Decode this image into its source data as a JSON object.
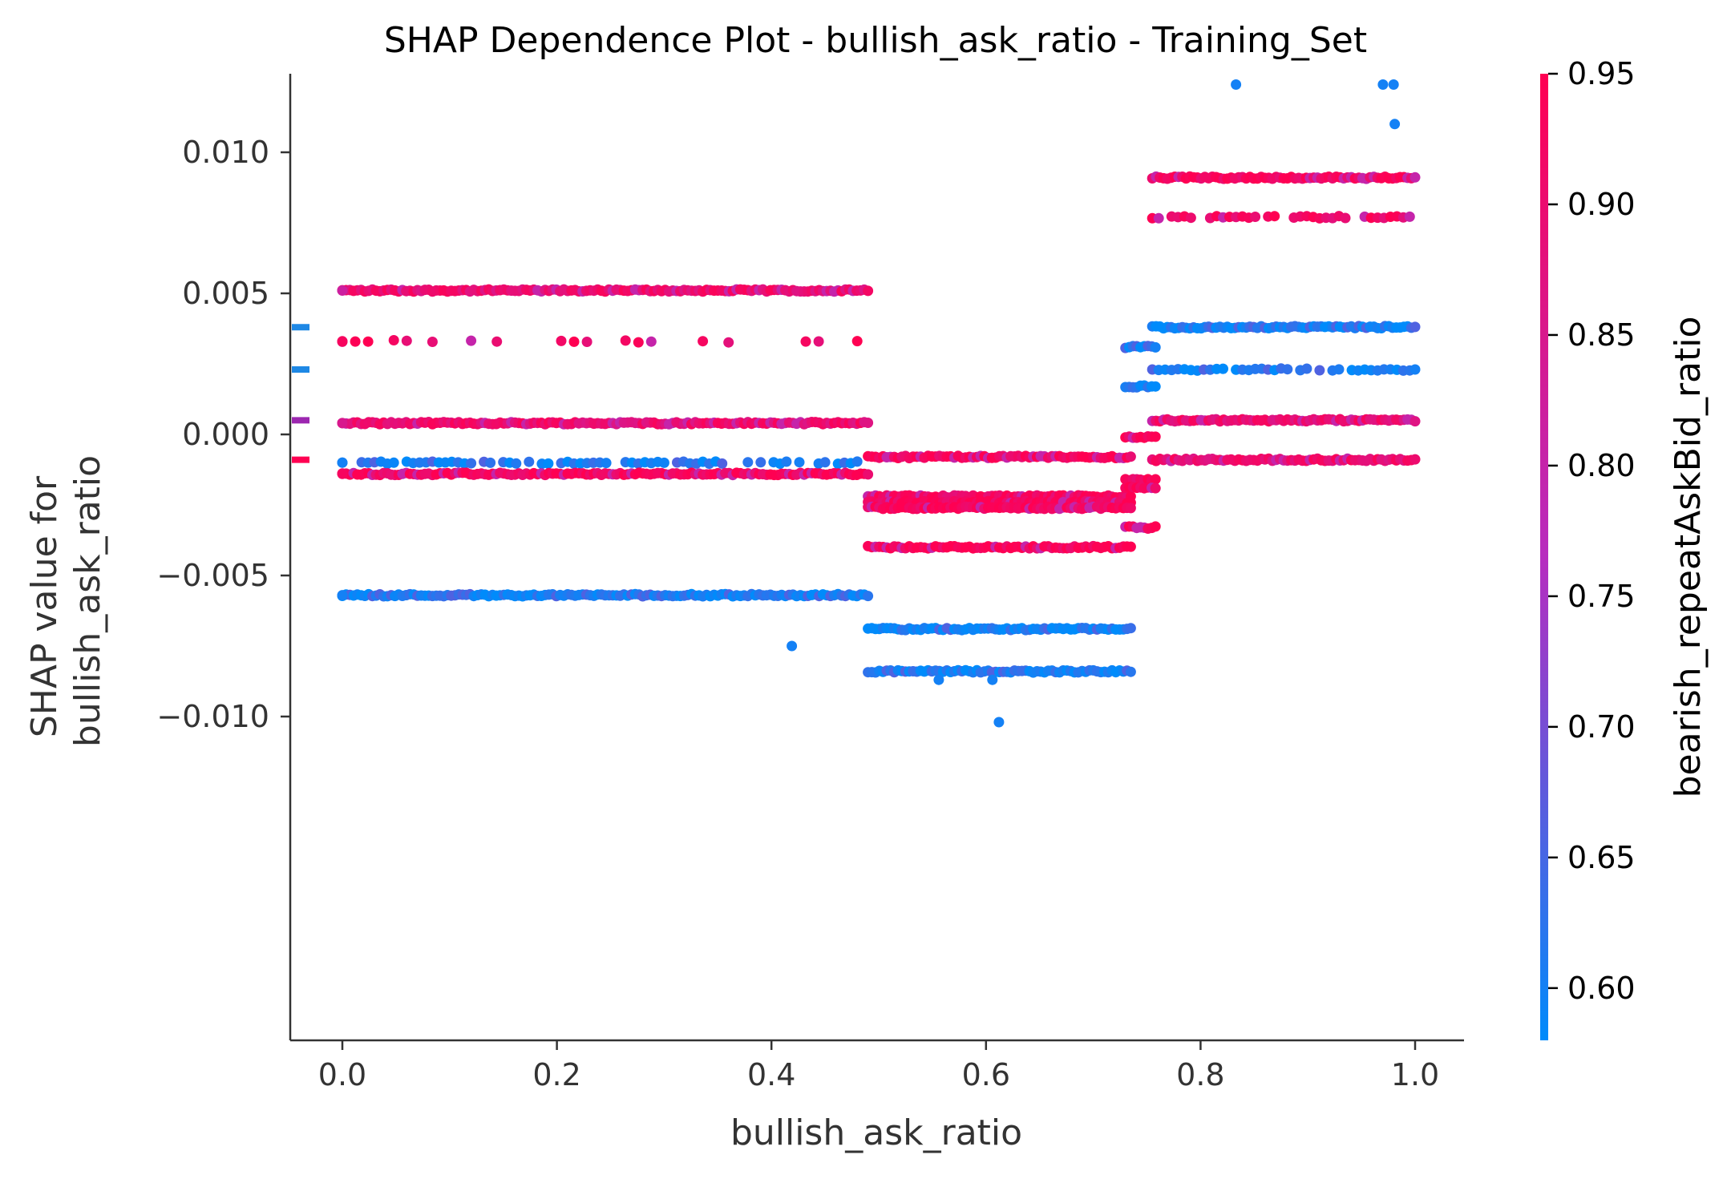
{
  "chart_data": {
    "type": "scatter",
    "title": "SHAP Dependence Plot - bullish_ask_ratio - Training_Set",
    "xlabel": "bullish_ask_ratio",
    "ylabel": [
      "SHAP value for",
      "bullish_ask_ratio"
    ],
    "xlim": [
      -0.05,
      1.05
    ],
    "ylim": [
      -0.0113,
      0.0135
    ],
    "x_ticks": [
      0.0,
      0.2,
      0.4,
      0.6,
      0.8,
      1.0
    ],
    "x_tick_labels": [
      "0.0",
      "0.2",
      "0.4",
      "0.6",
      "0.8",
      "1.0"
    ],
    "y_ticks": [
      -0.01,
      -0.005,
      0.0,
      0.005,
      0.01
    ],
    "y_tick_labels": [
      "−0.010",
      "−0.005",
      "0.000",
      "0.005",
      "0.010"
    ],
    "grid": false,
    "colorbar": {
      "label": "bearish_repeatAskBid_ratio",
      "range": [
        0.58,
        0.95
      ],
      "ticks": [
        0.6,
        0.65,
        0.7,
        0.75,
        0.8,
        0.85,
        0.9,
        0.95
      ],
      "tick_labels": [
        "0.60",
        "0.65",
        "0.70",
        "0.75",
        "0.80",
        "0.85",
        "0.90",
        "0.95"
      ],
      "color_low": "#008bfb",
      "color_mid": "#b72cbf",
      "color_high": "#ff0052"
    },
    "nan_markers": [
      {
        "y": 0.0038,
        "color": "#1e88e5"
      },
      {
        "y": 0.0023,
        "color": "#1e88e5"
      },
      {
        "y": 0.0005,
        "color": "#9c27b0"
      },
      {
        "y": -0.0009,
        "color": "#ff0052"
      }
    ],
    "bands": [
      {
        "x_start": 0.0,
        "x_end": 0.49,
        "y": 0.0051,
        "color_value": 0.9,
        "density": "dense"
      },
      {
        "x_start": 0.0,
        "x_end": 0.49,
        "y": 0.0033,
        "color_value": 0.92,
        "density": "sparse"
      },
      {
        "x_start": 0.0,
        "x_end": 0.49,
        "y": 0.0004,
        "color_value": 0.9,
        "density": "dense"
      },
      {
        "x_start": 0.0,
        "x_end": 0.49,
        "y": -0.001,
        "color_value": 0.6,
        "density": "medium"
      },
      {
        "x_start": 0.0,
        "x_end": 0.49,
        "y": -0.0014,
        "color_value": 0.93,
        "density": "dense"
      },
      {
        "x_start": 0.0,
        "x_end": 0.49,
        "y": -0.0057,
        "color_value": 0.6,
        "density": "dense"
      },
      {
        "x_start": 0.49,
        "x_end": 0.735,
        "y": -0.0008,
        "color_value": 0.93,
        "density": "dense"
      },
      {
        "x_start": 0.49,
        "x_end": 0.735,
        "y": -0.0022,
        "color_value": 0.92,
        "density": "dense"
      },
      {
        "x_start": 0.49,
        "x_end": 0.735,
        "y": -0.0024,
        "color_value": 0.93,
        "density": "dense"
      },
      {
        "x_start": 0.49,
        "x_end": 0.735,
        "y": -0.0026,
        "color_value": 0.93,
        "density": "dense"
      },
      {
        "x_start": 0.49,
        "x_end": 0.735,
        "y": -0.004,
        "color_value": 0.94,
        "density": "dense"
      },
      {
        "x_start": 0.49,
        "x_end": 0.735,
        "y": -0.0069,
        "color_value": 0.6,
        "density": "dense"
      },
      {
        "x_start": 0.49,
        "x_end": 0.735,
        "y": -0.0084,
        "color_value": 0.6,
        "density": "dense"
      },
      {
        "x_start": 0.73,
        "x_end": 0.76,
        "y": 0.0031,
        "color_value": 0.6,
        "density": "dense"
      },
      {
        "x_start": 0.73,
        "x_end": 0.76,
        "y": 0.0017,
        "color_value": 0.6,
        "density": "dense"
      },
      {
        "x_start": 0.73,
        "x_end": 0.76,
        "y": -0.0001,
        "color_value": 0.93,
        "density": "dense"
      },
      {
        "x_start": 0.73,
        "x_end": 0.76,
        "y": -0.0016,
        "color_value": 0.93,
        "density": "dense"
      },
      {
        "x_start": 0.73,
        "x_end": 0.76,
        "y": -0.0019,
        "color_value": 0.93,
        "density": "dense"
      },
      {
        "x_start": 0.73,
        "x_end": 0.76,
        "y": -0.0033,
        "color_value": 0.93,
        "density": "dense"
      },
      {
        "x_start": 0.755,
        "x_end": 1.0,
        "y": 0.0091,
        "color_value": 0.93,
        "density": "dense"
      },
      {
        "x_start": 0.755,
        "x_end": 1.0,
        "y": 0.0077,
        "color_value": 0.92,
        "density": "medium"
      },
      {
        "x_start": 0.755,
        "x_end": 1.0,
        "y": 0.0038,
        "color_value": 0.6,
        "density": "dense"
      },
      {
        "x_start": 0.755,
        "x_end": 1.0,
        "y": 0.0023,
        "color_value": 0.6,
        "density": "medium"
      },
      {
        "x_start": 0.755,
        "x_end": 1.0,
        "y": 0.0005,
        "color_value": 0.9,
        "density": "dense"
      },
      {
        "x_start": 0.755,
        "x_end": 1.0,
        "y": -0.0009,
        "color_value": 0.9,
        "density": "dense"
      }
    ],
    "isolated_points": [
      {
        "x": 0.0,
        "y": 0.0051,
        "color_value": 0.82
      },
      {
        "x": 0.0,
        "y": 0.0033,
        "color_value": 0.93
      },
      {
        "x": 0.0,
        "y": 0.0004,
        "color_value": 0.85
      },
      {
        "x": 0.0,
        "y": -0.001,
        "color_value": 0.6
      },
      {
        "x": 0.0,
        "y": -0.0014,
        "color_value": 0.93
      },
      {
        "x": 0.0,
        "y": -0.0057,
        "color_value": 0.6
      },
      {
        "x": 0.419,
        "y": -0.0075,
        "color_value": 0.6
      },
      {
        "x": 0.556,
        "y": -0.0087,
        "color_value": 0.6
      },
      {
        "x": 0.606,
        "y": -0.0087,
        "color_value": 0.6
      },
      {
        "x": 0.612,
        "y": -0.0102,
        "color_value": 0.6
      },
      {
        "x": 0.833,
        "y": 0.0124,
        "color_value": 0.6
      },
      {
        "x": 0.97,
        "y": 0.0124,
        "color_value": 0.6
      },
      {
        "x": 0.98,
        "y": 0.0124,
        "color_value": 0.6
      },
      {
        "x": 0.981,
        "y": 0.011,
        "color_value": 0.6
      },
      {
        "x": 1.0,
        "y": 0.0023,
        "color_value": 0.6
      }
    ]
  }
}
